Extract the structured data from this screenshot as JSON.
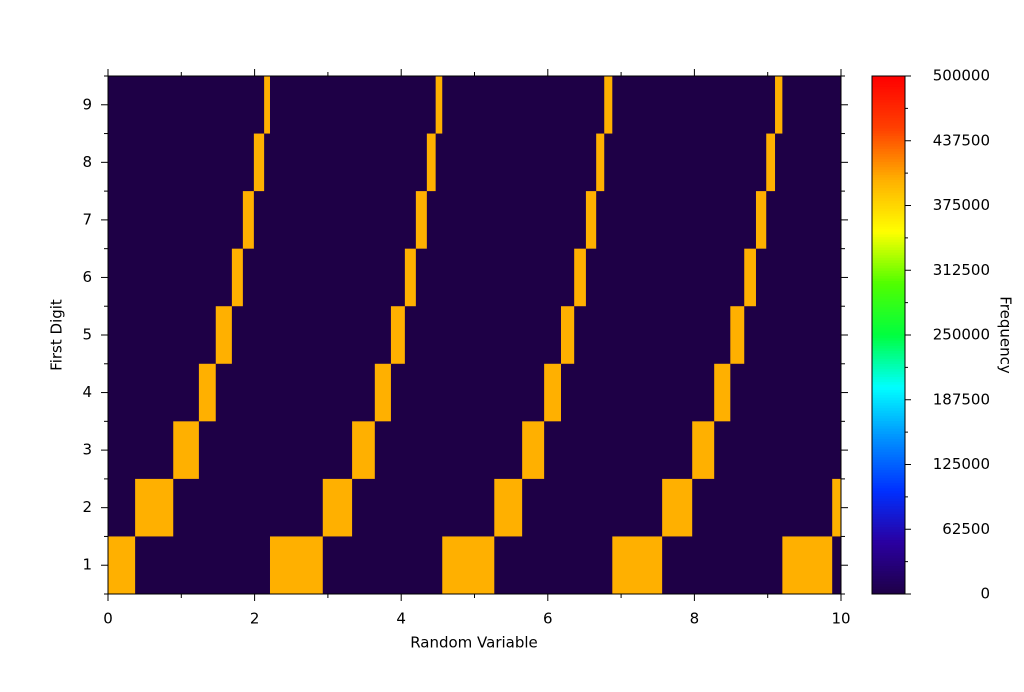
{
  "chart_data": {
    "type": "heatmap",
    "x_label": "Random Variable",
    "y_label": "First Digit",
    "colorbar_label": "Frequency",
    "xlim": [
      0,
      10
    ],
    "xticks": [
      0,
      2,
      4,
      6,
      8,
      10
    ],
    "ylim": [
      0.5,
      9.5
    ],
    "yticks": [
      1,
      2,
      3,
      4,
      5,
      6,
      7,
      8,
      9
    ],
    "zlim": [
      0,
      500000
    ],
    "zticks": [
      0,
      62500,
      125000,
      187500,
      250000,
      312500,
      375000,
      437500,
      500000
    ],
    "colormap": [
      "#1e0046",
      "#2a00a0",
      "#0030ff",
      "#0090ff",
      "#00ffff",
      "#00ff40",
      "#50ff00",
      "#ffff00",
      "#ffb000",
      "#ff4000",
      "#ff0000"
    ],
    "cells": [
      {
        "y": 1,
        "x": [
          0,
          0.37
        ],
        "value": 400000
      },
      {
        "y": 2,
        "x": [
          0.37,
          0.89
        ],
        "value": 400000
      },
      {
        "y": 3,
        "x": [
          0.89,
          1.24
        ],
        "value": 400000
      },
      {
        "y": 4,
        "x": [
          1.24,
          1.47
        ],
        "value": 400000
      },
      {
        "y": 5,
        "x": [
          1.47,
          1.69
        ],
        "value": 400000
      },
      {
        "y": 6,
        "x": [
          1.69,
          1.84
        ],
        "value": 400000
      },
      {
        "y": 7,
        "x": [
          1.84,
          1.99
        ],
        "value": 400000
      },
      {
        "y": 8,
        "x": [
          1.99,
          2.13
        ],
        "value": 400000
      },
      {
        "y": 9,
        "x": [
          2.13,
          2.21
        ],
        "value": 400000
      },
      {
        "y": 1,
        "x": [
          2.21,
          2.93
        ],
        "value": 400000
      },
      {
        "y": 2,
        "x": [
          2.93,
          3.33
        ],
        "value": 400000
      },
      {
        "y": 3,
        "x": [
          3.33,
          3.64
        ],
        "value": 400000
      },
      {
        "y": 4,
        "x": [
          3.64,
          3.86
        ],
        "value": 400000
      },
      {
        "y": 5,
        "x": [
          3.86,
          4.05
        ],
        "value": 400000
      },
      {
        "y": 6,
        "x": [
          4.05,
          4.2
        ],
        "value": 400000
      },
      {
        "y": 7,
        "x": [
          4.2,
          4.35
        ],
        "value": 400000
      },
      {
        "y": 8,
        "x": [
          4.35,
          4.47
        ],
        "value": 400000
      },
      {
        "y": 9,
        "x": [
          4.47,
          4.56
        ],
        "value": 400000
      },
      {
        "y": 1,
        "x": [
          4.56,
          5.27
        ],
        "value": 400000
      },
      {
        "y": 2,
        "x": [
          5.27,
          5.65
        ],
        "value": 400000
      },
      {
        "y": 3,
        "x": [
          5.65,
          5.95
        ],
        "value": 400000
      },
      {
        "y": 4,
        "x": [
          5.95,
          6.18
        ],
        "value": 400000
      },
      {
        "y": 5,
        "x": [
          6.18,
          6.36
        ],
        "value": 400000
      },
      {
        "y": 6,
        "x": [
          6.36,
          6.52
        ],
        "value": 400000
      },
      {
        "y": 7,
        "x": [
          6.52,
          6.66
        ],
        "value": 400000
      },
      {
        "y": 8,
        "x": [
          6.66,
          6.77
        ],
        "value": 400000
      },
      {
        "y": 9,
        "x": [
          6.77,
          6.88
        ],
        "value": 400000
      },
      {
        "y": 1,
        "x": [
          6.88,
          7.56
        ],
        "value": 400000
      },
      {
        "y": 2,
        "x": [
          7.56,
          7.97
        ],
        "value": 400000
      },
      {
        "y": 3,
        "x": [
          7.97,
          8.27
        ],
        "value": 400000
      },
      {
        "y": 4,
        "x": [
          8.27,
          8.49
        ],
        "value": 400000
      },
      {
        "y": 5,
        "x": [
          8.49,
          8.68
        ],
        "value": 400000
      },
      {
        "y": 6,
        "x": [
          8.68,
          8.84
        ],
        "value": 400000
      },
      {
        "y": 7,
        "x": [
          8.84,
          8.98
        ],
        "value": 400000
      },
      {
        "y": 8,
        "x": [
          8.98,
          9.1
        ],
        "value": 400000
      },
      {
        "y": 9,
        "x": [
          9.1,
          9.2
        ],
        "value": 400000
      },
      {
        "y": 1,
        "x": [
          9.2,
          9.88
        ],
        "value": 400000
      },
      {
        "y": 2,
        "x": [
          9.88,
          10
        ],
        "value": 400000
      }
    ]
  }
}
